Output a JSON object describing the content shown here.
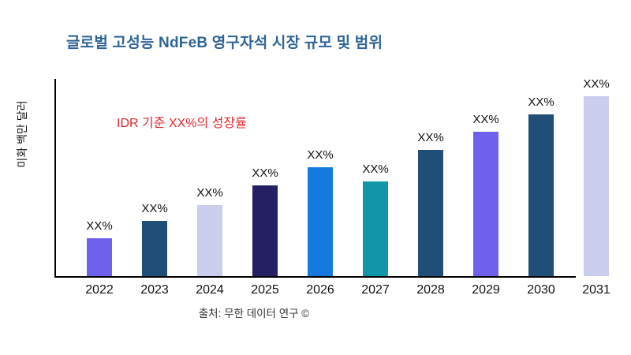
{
  "title": "글로벌 고성능 NdFeB 영구자석 시장 규모 및 범위",
  "annotation": "IDR 기준 XX%의 성장률",
  "y_axis_label": "미화 백만 달러",
  "source": "출처: 무한 데이터 연구 ©",
  "colors": {
    "title": "#2E6496",
    "annotation": "#E8262D",
    "axis": "#000000",
    "label_text": "#111111"
  },
  "chart_data": {
    "type": "bar",
    "title": "글로벌 고성능 NdFeB 영구자석 시장 규모 및 범위",
    "categories": [
      "2022",
      "2023",
      "2024",
      "2025",
      "2026",
      "2027",
      "2028",
      "2029",
      "2030",
      "2031"
    ],
    "values": [
      19,
      28,
      36,
      46,
      55,
      48,
      64,
      73,
      82,
      91
    ],
    "bar_labels": [
      "XX%",
      "XX%",
      "XX%",
      "XX%",
      "XX%",
      "XX%",
      "XX%",
      "XX%",
      "XX%",
      "XX%"
    ],
    "bar_colors": [
      "#6F61EC",
      "#1F4E79",
      "#CBCDEE",
      "#252063",
      "#1679E0",
      "#1196A9",
      "#1F4E79",
      "#6F61EC",
      "#1F4E79",
      "#CBCDEE"
    ],
    "xlabel": "",
    "ylabel": "미화 백만 달러",
    "ylim": [
      0,
      100
    ],
    "grid": false,
    "legend": false,
    "annotation": "IDR 기준 XX%의 성장률",
    "source": "출처: 무한 데이터 연구 ©"
  }
}
